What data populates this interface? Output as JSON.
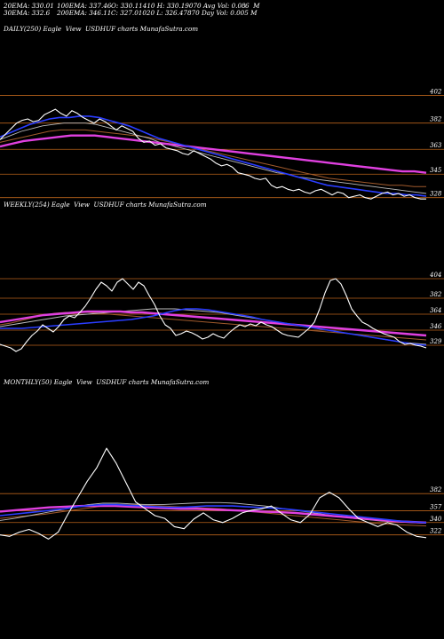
{
  "header": {
    "row1": [
      "20EMA: 330.01",
      "100EMA: 337.46",
      "O: 330.11410 H: 330.19070 Avg Vol: 0.08",
      "6  M"
    ],
    "row2": [
      "30EMA: 332.6",
      "200EMA: 346.11",
      "C: 327.01020 L: 326.47870 Day Vol: 0.005 M"
    ]
  },
  "colors": {
    "background": "#000000",
    "price": "#ffffff",
    "ema_blue": "#2a3dff",
    "ema_magenta": "#e040e0",
    "ema_brown": "#a05a2c",
    "ema_gray": "#bbbbbb",
    "level_line": "#b8621b"
  },
  "chart_data": [
    {
      "type": "line",
      "title": "DAILY(250) Eagle  View  USDHUF charts MunafaSutra.com",
      "ticks": [
        "402",
        "382",
        "363",
        "345",
        "328"
      ],
      "tick_values": [
        402,
        382,
        363,
        345,
        328
      ],
      "ylim": [
        322,
        412
      ],
      "series": [
        {
          "role": "price",
          "values": [
            370,
            374,
            378,
            382,
            384,
            385,
            383,
            384,
            388,
            390,
            392,
            389,
            387,
            391,
            389,
            386,
            384,
            382,
            385,
            383,
            380,
            377,
            380,
            378,
            376,
            371,
            368,
            369,
            366,
            367,
            364,
            363,
            362,
            360,
            359,
            362,
            360,
            358,
            356,
            353,
            351,
            352,
            350,
            346,
            345,
            344,
            342,
            341,
            342,
            337,
            335,
            336,
            334,
            333,
            334,
            332,
            331,
            333,
            334,
            332,
            330,
            332,
            331,
            328,
            329,
            330,
            328,
            327,
            329,
            331,
            332,
            330,
            331,
            329,
            330,
            328,
            327,
            327
          ]
        },
        {
          "role": "ema_blue",
          "values": [
            372,
            375,
            378,
            381,
            383,
            385,
            386,
            386,
            387,
            387,
            386,
            384,
            382,
            380,
            377,
            374,
            371,
            369,
            367,
            365,
            363,
            361,
            359,
            357,
            355,
            353,
            351,
            349,
            347,
            345,
            343,
            341,
            339,
            337,
            336,
            335,
            334,
            333,
            332,
            331,
            331,
            330,
            330,
            329
          ]
        },
        {
          "role": "ema_magenta",
          "values": [
            365,
            367,
            369,
            370,
            371,
            372,
            373,
            373,
            373,
            372,
            371,
            370,
            369,
            368,
            367,
            366,
            365,
            364,
            363,
            362,
            361,
            360,
            359,
            358,
            357,
            356,
            355,
            354,
            353,
            352,
            351,
            350,
            349,
            348,
            347,
            347,
            346
          ]
        },
        {
          "role": "ema_brown",
          "values": [
            368,
            370,
            372,
            374,
            376,
            377,
            377,
            377,
            376,
            375,
            374,
            373,
            372,
            370,
            368,
            366,
            364,
            362,
            360,
            358,
            356,
            354,
            352,
            350,
            348,
            346,
            344,
            342,
            341,
            340,
            339,
            338,
            337,
            337,
            336,
            336
          ]
        },
        {
          "role": "ema_gray",
          "values": [
            370,
            373,
            376,
            378,
            380,
            381,
            382,
            382,
            382,
            381,
            379,
            377,
            375,
            373,
            371,
            368,
            366,
            364,
            362,
            360,
            358,
            356,
            354,
            352,
            350,
            348,
            346,
            345,
            343,
            342,
            341,
            340,
            339,
            338,
            337,
            336,
            335,
            334,
            333,
            332,
            331
          ]
        }
      ]
    },
    {
      "type": "line",
      "title": "WEEKLY(254) Eagle  View  USDHUF charts MunafaSutra.com",
      "ticks": [
        "404",
        "382",
        "364",
        "346",
        "329"
      ],
      "tick_values": [
        404,
        382,
        364,
        346,
        329
      ],
      "ylim": [
        318,
        416
      ],
      "series": [
        {
          "role": "price",
          "values": [
            330,
            328,
            326,
            322,
            325,
            333,
            340,
            345,
            352,
            348,
            344,
            350,
            358,
            362,
            360,
            366,
            373,
            382,
            392,
            400,
            396,
            390,
            400,
            404,
            398,
            392,
            400,
            396,
            385,
            375,
            362,
            352,
            348,
            340,
            342,
            345,
            343,
            340,
            336,
            338,
            342,
            339,
            337,
            343,
            348,
            352,
            350,
            353,
            351,
            355,
            352,
            350,
            346,
            342,
            340,
            339,
            338,
            343,
            348,
            355,
            370,
            388,
            402,
            404,
            398,
            385,
            370,
            362,
            355,
            352,
            348,
            345,
            342,
            340,
            338,
            333,
            330,
            331,
            329,
            328,
            326
          ]
        },
        {
          "role": "ema_blue",
          "values": [
            348,
            348,
            348,
            349,
            350,
            351,
            352,
            353,
            354,
            355,
            356,
            357,
            358,
            360,
            362,
            365,
            368,
            370,
            370,
            369,
            367,
            365,
            363,
            361,
            358,
            356,
            354,
            352,
            350,
            348,
            346,
            344,
            342,
            340,
            338,
            336,
            334,
            332,
            330,
            329
          ]
        },
        {
          "role": "ema_magenta",
          "values": [
            355,
            357,
            359,
            361,
            363,
            364,
            365,
            366,
            367,
            367,
            367,
            367,
            366,
            366,
            365,
            364,
            363,
            362,
            361,
            360,
            359,
            358,
            357,
            356,
            355,
            354,
            353,
            352,
            351,
            350,
            349,
            348,
            347,
            346,
            345,
            344,
            343,
            342,
            341,
            340
          ]
        },
        {
          "role": "ema_brown",
          "values": [
            352,
            354,
            357,
            360,
            363,
            365,
            366,
            366,
            366,
            365,
            364,
            363,
            362,
            361,
            360,
            359,
            358,
            357,
            356,
            355,
            354,
            353,
            352,
            351,
            350,
            349,
            348,
            347,
            346,
            345,
            344,
            343,
            342,
            341,
            340,
            339,
            338,
            337,
            336,
            335
          ]
        },
        {
          "role": "ema_gray",
          "values": [
            350,
            352,
            354,
            356,
            358,
            360,
            362,
            363,
            364,
            365,
            366,
            367,
            368,
            369,
            370,
            370,
            370,
            369,
            368,
            367,
            366,
            364,
            362,
            360,
            358,
            356,
            354,
            352,
            350,
            348,
            346,
            344,
            342,
            340,
            338,
            336,
            334,
            332,
            331,
            330
          ]
        }
      ]
    },
    {
      "type": "line",
      "title": "MONTHLY(50) Eagle  View  USDHUF charts MunafaSutra.com",
      "ticks": [
        "382",
        "357",
        "340",
        "322"
      ],
      "tick_values": [
        382,
        357,
        340,
        322
      ],
      "ylim": [
        310,
        470
      ],
      "series": [
        {
          "role": "price",
          "values": [
            322,
            320,
            326,
            330,
            324,
            316,
            326,
            352,
            376,
            400,
            420,
            448,
            426,
            398,
            370,
            360,
            350,
            346,
            334,
            331,
            345,
            354,
            344,
            340,
            346,
            354,
            358,
            360,
            364,
            354,
            344,
            340,
            352,
            376,
            384,
            376,
            360,
            346,
            340,
            334,
            340,
            336,
            326,
            320,
            318
          ]
        },
        {
          "role": "ema_blue",
          "values": [
            350,
            352,
            354,
            356,
            358,
            360,
            363,
            365,
            366,
            366,
            365,
            364,
            363,
            362,
            362,
            363,
            364,
            364,
            364,
            363,
            362,
            361,
            360,
            358,
            356,
            354,
            352,
            350,
            348,
            346,
            344,
            342,
            341,
            340
          ]
        },
        {
          "role": "ema_magenta",
          "values": [
            356,
            358,
            360,
            362,
            363,
            364,
            364,
            364,
            363,
            362,
            361,
            360,
            360,
            359,
            358,
            357,
            356,
            355,
            354,
            352,
            350,
            348,
            346,
            344,
            342,
            341,
            340
          ]
        },
        {
          "role": "ema_brown",
          "values": [
            346,
            348,
            350,
            352,
            355,
            358,
            361,
            364,
            366,
            366,
            365,
            364,
            363,
            362,
            361,
            360,
            358,
            356,
            354,
            352,
            350,
            348,
            346,
            344,
            342,
            340,
            338,
            337,
            336,
            335
          ]
        },
        {
          "role": "ema_gray",
          "values": [
            343,
            346,
            350,
            354,
            358,
            362,
            366,
            368,
            368,
            367,
            366,
            366,
            367,
            368,
            369,
            369,
            368,
            366,
            364,
            361,
            358,
            355,
            352,
            349,
            346,
            344,
            342,
            341,
            340,
            339
          ]
        }
      ]
    }
  ]
}
